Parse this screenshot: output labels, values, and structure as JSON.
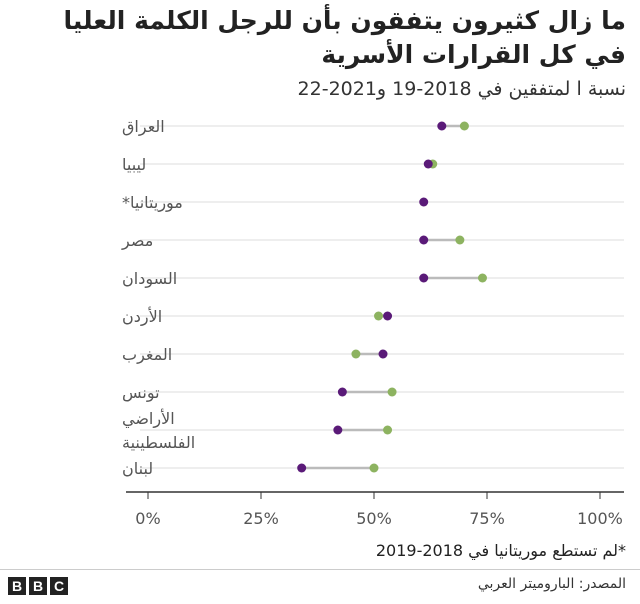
{
  "title": "ما زال كثيرون يتفقون بأن للرجل الكلمة العليا في كل القرارات الأسرية",
  "subtitle": "نسبة ا لمتفقين في 2018-19 و2021-22",
  "footnote": "*لم تستطع موريتانيا في 2018-2019",
  "source": "المصدر: الباروميتر العربي",
  "logo": [
    "B",
    "B",
    "C"
  ],
  "chart_data": {
    "type": "dot",
    "title": "ما زال كثيرون يتفقون بأن للرجل الكلمة العليا في كل القرارات الأسرية",
    "subtitle": "نسبة ا لمتفقين في 2018-19 و2021-22",
    "xlim": [
      0,
      100
    ],
    "x_ticks": [
      0,
      25,
      50,
      75,
      100
    ],
    "x_tick_labels": [
      "0%",
      "25%",
      "50%",
      "75%",
      "100%"
    ],
    "grid": true,
    "categories": [
      "العراق",
      "ليبيا",
      "موريتانيا*",
      "مصر",
      "السودان",
      "الأردن",
      "المغرب",
      "تونس",
      "الأراضي الفلسطينية",
      "لبنان"
    ],
    "category_label_lines": [
      [
        "العراق"
      ],
      [
        "ليبيا"
      ],
      [
        "موريتانيا*"
      ],
      [
        "مصر"
      ],
      [
        "السودان"
      ],
      [
        "الأردن"
      ],
      [
        "المغرب"
      ],
      [
        "تونس"
      ],
      [
        "الأراضي",
        "الفلسطينية"
      ],
      [
        "لبنان"
      ]
    ],
    "series": [
      {
        "values": [
          70,
          63,
          null,
          69,
          74,
          51,
          46,
          54,
          53,
          50
        ],
        "color": "#8db360"
      },
      {
        "values": [
          65,
          62,
          61,
          61,
          61,
          53,
          52,
          43,
          42,
          34
        ],
        "color": "#5a1a78"
      }
    ],
    "connector_color": "#bbbbbb"
  }
}
